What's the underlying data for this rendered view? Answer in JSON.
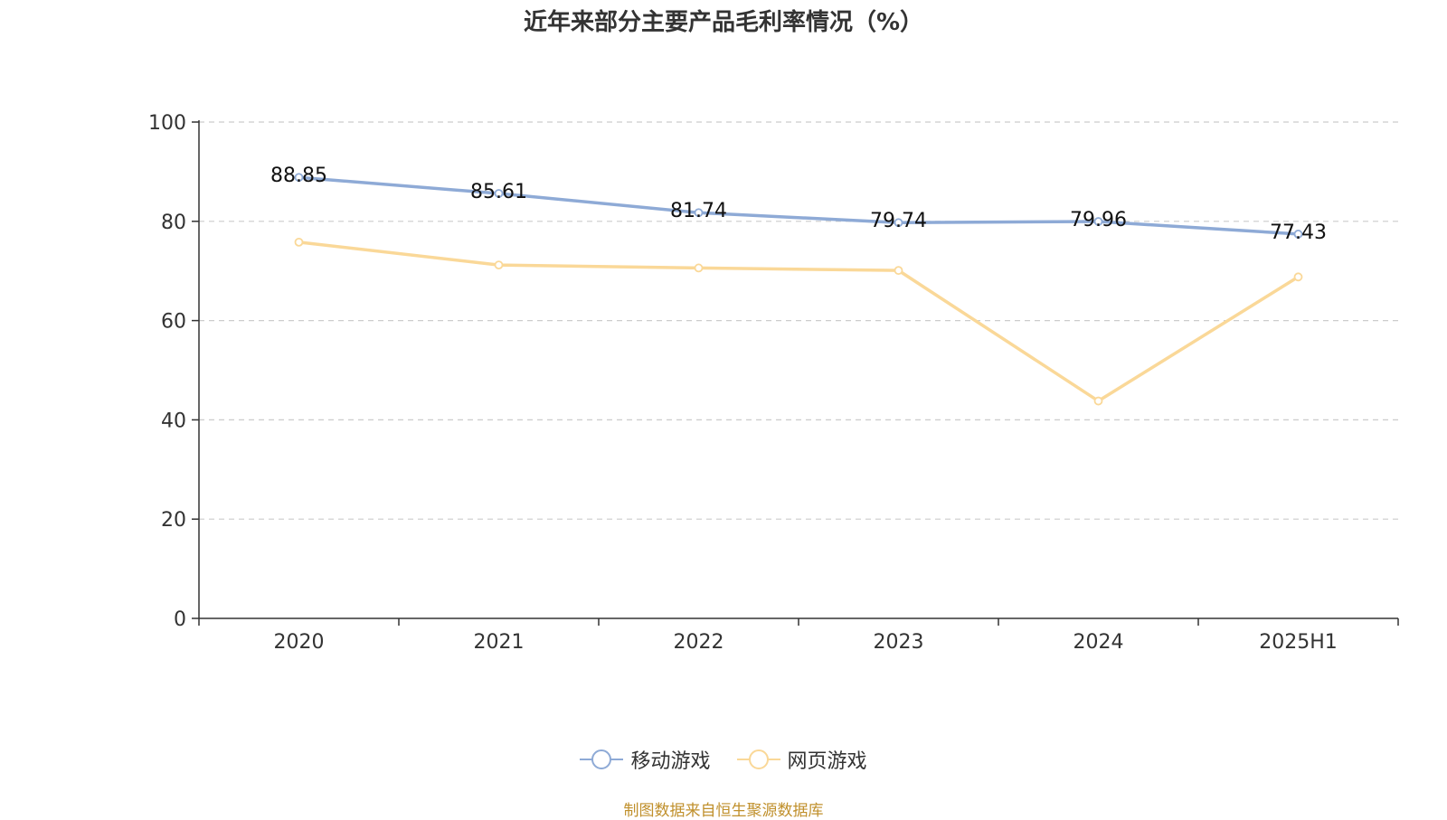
{
  "title": "近年来部分主要产品毛利率情况（%）",
  "source": "制图数据来自恒生聚源数据库",
  "chart_data": {
    "type": "line",
    "title": "近年来部分主要产品毛利率情况（%）",
    "categories": [
      "2020",
      "2021",
      "2022",
      "2023",
      "2024",
      "2025H1"
    ],
    "ylim": [
      0,
      100
    ],
    "yticks": [
      0,
      20,
      40,
      60,
      80,
      100
    ],
    "grid": true,
    "legend_position": "bottom",
    "series": [
      {
        "name": "移动游戏",
        "color": "#8eaad6",
        "values": [
          88.85,
          85.61,
          81.74,
          79.74,
          79.96,
          77.43
        ],
        "labels": [
          "88.85",
          "85.61",
          "81.74",
          "79.74",
          "79.96",
          "77.43"
        ],
        "show_labels": true
      },
      {
        "name": "网页游戏",
        "color": "#fad898",
        "values": [
          75.8,
          71.2,
          70.6,
          70.1,
          43.8,
          68.8
        ],
        "show_labels": false
      }
    ]
  }
}
